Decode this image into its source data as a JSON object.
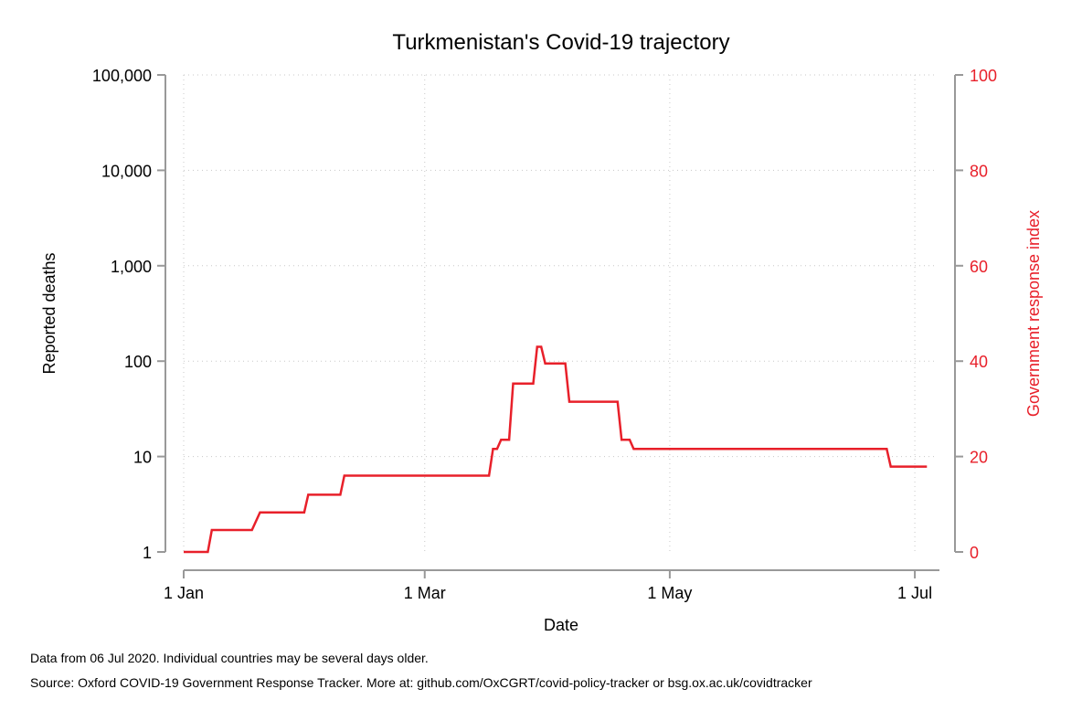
{
  "chart_data": {
    "type": "line",
    "title": "Turkmenistan's Covid-19 trajectory",
    "xlabel": "Date",
    "ylabel_left": "Reported deaths",
    "ylabel_right": "Government response index",
    "x_ticks": [
      "2020-01-01",
      "2020-03-01",
      "2020-05-01",
      "2020-07-01"
    ],
    "x_tick_labels": [
      "1 Jan",
      "1 Mar",
      "1 May",
      "1 Jul"
    ],
    "xlim": [
      "2020-01-01",
      "2020-07-04"
    ],
    "y_left": {
      "scale": "log",
      "ticks": [
        1,
        10,
        100,
        1000,
        10000,
        100000
      ],
      "tick_labels": [
        "1",
        "10",
        "100",
        "1,000",
        "10,000",
        "100,000"
      ],
      "lim": [
        1,
        100000
      ]
    },
    "y_right": {
      "scale": "linear",
      "ticks": [
        0,
        20,
        40,
        60,
        80,
        100
      ],
      "tick_labels": [
        "0",
        "20",
        "40",
        "60",
        "80",
        "100"
      ],
      "lim": [
        0,
        100
      ],
      "color": "#e8202a"
    },
    "grid": true,
    "series": [
      {
        "axis": "right",
        "color": "#e8202a",
        "type": "step",
        "points": [
          {
            "x": "2020-01-01",
            "y": 0
          },
          {
            "x": "2020-01-07",
            "y": 0
          },
          {
            "x": "2020-01-08",
            "y": 4.6
          },
          {
            "x": "2020-01-18",
            "y": 4.6
          },
          {
            "x": "2020-01-20",
            "y": 8.3
          },
          {
            "x": "2020-01-31",
            "y": 8.3
          },
          {
            "x": "2020-02-01",
            "y": 12.0
          },
          {
            "x": "2020-02-09",
            "y": 12.0
          },
          {
            "x": "2020-02-10",
            "y": 16.0
          },
          {
            "x": "2020-03-17",
            "y": 16.0
          },
          {
            "x": "2020-03-18",
            "y": 21.6
          },
          {
            "x": "2020-03-19",
            "y": 21.6
          },
          {
            "x": "2020-03-20",
            "y": 23.5
          },
          {
            "x": "2020-03-22",
            "y": 23.5
          },
          {
            "x": "2020-03-23",
            "y": 35.3
          },
          {
            "x": "2020-03-28",
            "y": 35.3
          },
          {
            "x": "2020-03-29",
            "y": 43.0
          },
          {
            "x": "2020-03-30",
            "y": 43.0
          },
          {
            "x": "2020-03-31",
            "y": 39.5
          },
          {
            "x": "2020-04-05",
            "y": 39.5
          },
          {
            "x": "2020-04-06",
            "y": 31.5
          },
          {
            "x": "2020-04-18",
            "y": 31.5
          },
          {
            "x": "2020-04-19",
            "y": 23.5
          },
          {
            "x": "2020-04-21",
            "y": 23.5
          },
          {
            "x": "2020-04-22",
            "y": 21.6
          },
          {
            "x": "2020-06-24",
            "y": 21.6
          },
          {
            "x": "2020-06-25",
            "y": 17.9
          },
          {
            "x": "2020-07-04",
            "y": 17.9
          }
        ]
      }
    ]
  },
  "notes": {
    "line1": "Data from 06 Jul 2020. Individual countries may be several days older.",
    "line2": "Source: Oxford COVID-19 Government Response Tracker. More at: github.com/OxCGRT/covid-policy-tracker or bsg.ox.ac.uk/covidtracker"
  }
}
